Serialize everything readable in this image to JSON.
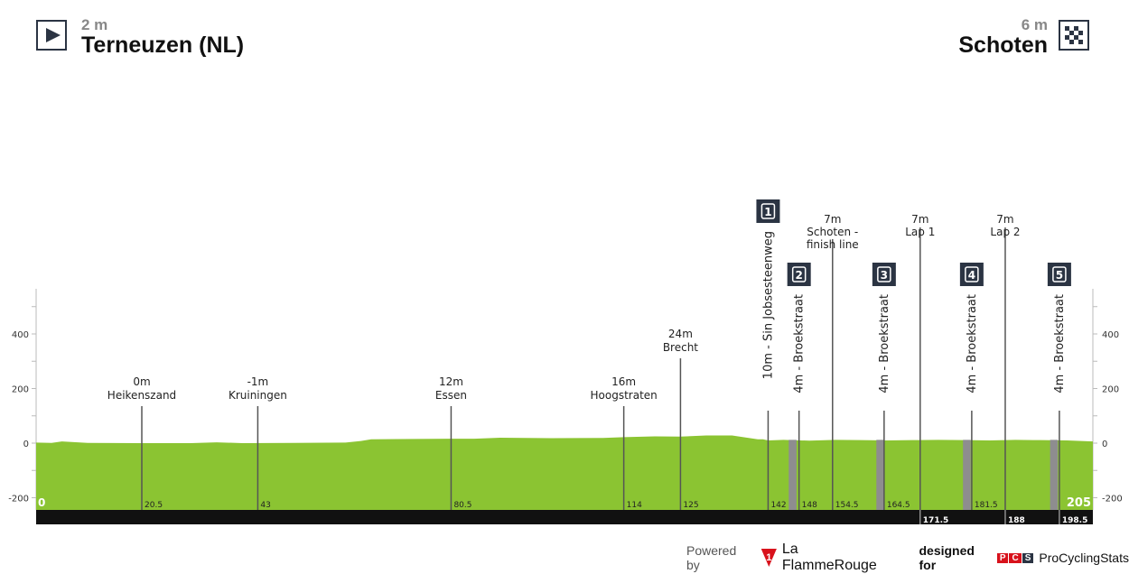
{
  "start": {
    "altitude": "2 m",
    "city": "Terneuzen (NL)",
    "icon": "start-play-icon"
  },
  "finish": {
    "altitude": "6 m",
    "city": "Schoten",
    "icon": "checkered-flag-icon"
  },
  "footer": {
    "powered": "Powered by",
    "brand": "La FlammeRouge",
    "brand_mark": "1",
    "designed": "designed for",
    "pcs_letters": [
      "P",
      "C",
      "S"
    ],
    "pcs": "ProCyclingStats"
  },
  "chart_data": {
    "type": "area",
    "xlim": [
      0,
      205
    ],
    "ylim": [
      -245,
      570
    ],
    "yticks": [
      400,
      200,
      0,
      -200
    ],
    "colors": {
      "fill": "#8bc432",
      "band": "#8e8d8f",
      "bar": "#111111",
      "badge": "#2b3443"
    },
    "profile": {
      "x": [
        0,
        3,
        5,
        10,
        20,
        30,
        35,
        40,
        50,
        60,
        63,
        65,
        70,
        80,
        85,
        90,
        100,
        110,
        114,
        120,
        125,
        130,
        135,
        140,
        141,
        142,
        145,
        150,
        155,
        160,
        165,
        170,
        175,
        180,
        185,
        190,
        195,
        200,
        205
      ],
      "y": [
        2,
        1,
        6,
        1,
        0,
        0,
        3,
        0,
        1,
        2,
        8,
        14,
        15,
        16,
        16,
        20,
        18,
        19,
        22,
        25,
        24,
        28,
        28,
        14,
        14,
        10,
        12,
        9,
        12,
        11,
        10,
        11,
        12,
        11,
        10,
        12,
        11,
        10,
        6
      ]
    },
    "distance_labels_top": [
      "0",
      "20.5",
      "43",
      "80.5",
      "114",
      "125",
      "142",
      "148",
      "154.5",
      "164.5",
      "181.5",
      "205"
    ],
    "distance_labels_bar": [
      "171.5",
      "188",
      "198.5"
    ],
    "cobble_sectors": [
      [
        146,
        147.5
      ],
      [
        163,
        164.5
      ],
      [
        179.8,
        181.3
      ],
      [
        196.7,
        198.2
      ]
    ],
    "points": [
      {
        "km": 20.5,
        "alt": "0m",
        "name": "Heikenszand"
      },
      {
        "km": 43,
        "alt": "-1m",
        "name": "Kruiningen"
      },
      {
        "km": 80.5,
        "alt": "12m",
        "name": "Essen"
      },
      {
        "km": 114,
        "alt": "16m",
        "name": "Hoogstraten"
      },
      {
        "km": 125,
        "alt": "24m",
        "name": "Brecht"
      },
      {
        "km": 154.5,
        "alt": "7m",
        "name": "Schoten -",
        "name2": "finish line"
      },
      {
        "km": 171.5,
        "alt": "7m",
        "name": "Lap 1"
      },
      {
        "km": 188,
        "alt": "7m",
        "name": "Lap 2"
      }
    ],
    "sectors": [
      {
        "km": 142,
        "num": "1",
        "label": "10m - Sin Jobsesteenweg"
      },
      {
        "km": 148,
        "num": "2",
        "label": "4m - Broekstraat"
      },
      {
        "km": 164.5,
        "num": "3",
        "label": "4m - Broekstraat"
      },
      {
        "km": 181.5,
        "num": "4",
        "label": "4m - Broekstraat"
      },
      {
        "km": 198.5,
        "num": "5",
        "label": "4m - Broekstraat"
      }
    ]
  }
}
